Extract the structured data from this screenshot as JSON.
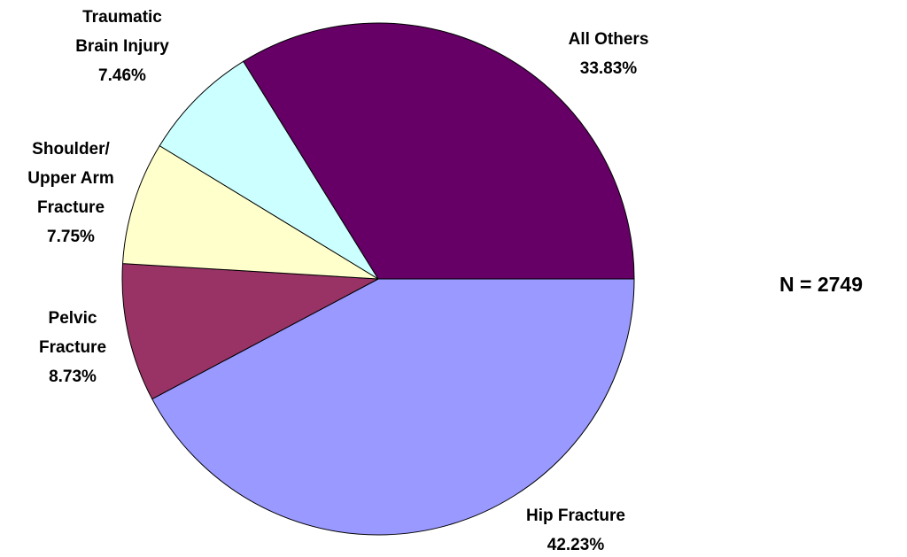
{
  "chart_data": {
    "type": "pie",
    "categories": [
      "Hip Fracture",
      "Pelvic\nFracture",
      "Shoulder/\nUpper Arm\nFracture",
      "Traumatic\nBrain Injury",
      "All Others"
    ],
    "values": [
      42.23,
      8.73,
      7.75,
      7.46,
      33.83
    ],
    "value_labels": [
      "42.23%",
      "8.73%",
      "7.75%",
      "7.46%",
      "33.83%"
    ],
    "colors": [
      "#9999ff",
      "#993366",
      "#ffffcc",
      "#ccffff",
      "#660066"
    ],
    "annotation": "N = 2749"
  }
}
